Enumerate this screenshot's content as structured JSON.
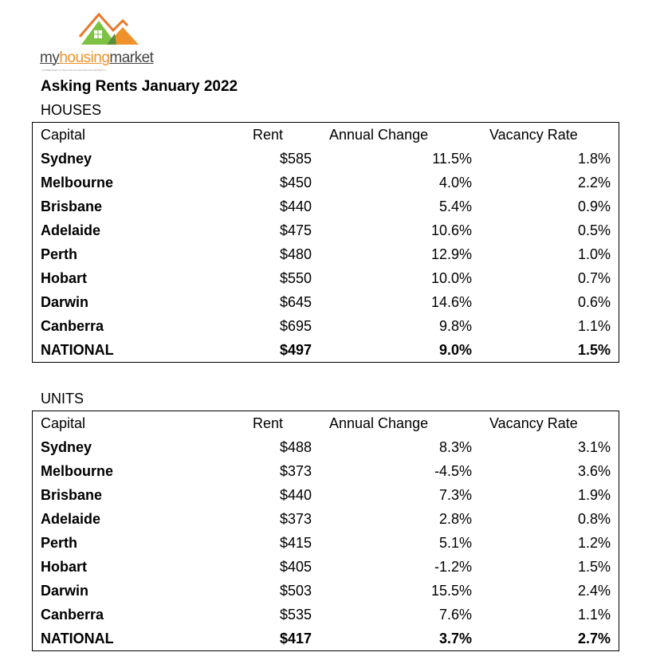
{
  "logo": {
    "my": "my",
    "housing": "housing",
    "market": "market",
    "tagline": "COMMENTARY & ANALYSIS OF AUSTRALIAN PROPERTY"
  },
  "title": "Asking Rents January 2022",
  "columns": [
    "Capital",
    "Rent",
    "Annual Change",
    "Vacancy Rate"
  ],
  "houses": {
    "label": "HOUSES",
    "rows": [
      [
        "Sydney",
        "$585",
        "11.5%",
        "1.8%"
      ],
      [
        "Melbourne",
        "$450",
        "4.0%",
        "2.2%"
      ],
      [
        "Brisbane",
        "$440",
        "5.4%",
        "0.9%"
      ],
      [
        "Adelaide",
        "$475",
        "10.6%",
        "0.5%"
      ],
      [
        "Perth",
        "$480",
        "12.9%",
        "1.0%"
      ],
      [
        "Hobart",
        "$550",
        "10.0%",
        "0.7%"
      ],
      [
        "Darwin",
        "$645",
        "14.6%",
        "0.6%"
      ],
      [
        "Canberra",
        "$695",
        "9.8%",
        "1.1%"
      ],
      [
        "NATIONAL",
        "$497",
        "9.0%",
        "1.5%"
      ]
    ]
  },
  "units": {
    "label": "UNITS",
    "rows": [
      [
        "Sydney",
        "$488",
        "8.3%",
        "3.1%"
      ],
      [
        "Melbourne",
        "$373",
        "-4.5%",
        "3.6%"
      ],
      [
        "Brisbane",
        "$440",
        "7.3%",
        "1.9%"
      ],
      [
        "Adelaide",
        "$373",
        "2.8%",
        "0.8%"
      ],
      [
        "Perth",
        "$415",
        "5.1%",
        "1.2%"
      ],
      [
        "Hobart",
        "$405",
        "-1.2%",
        "1.5%"
      ],
      [
        "Darwin",
        "$503",
        "15.5%",
        "2.4%"
      ],
      [
        "Canberra",
        "$535",
        "7.6%",
        "1.1%"
      ],
      [
        "NATIONAL",
        "$417",
        "3.7%",
        "2.7%"
      ]
    ]
  }
}
